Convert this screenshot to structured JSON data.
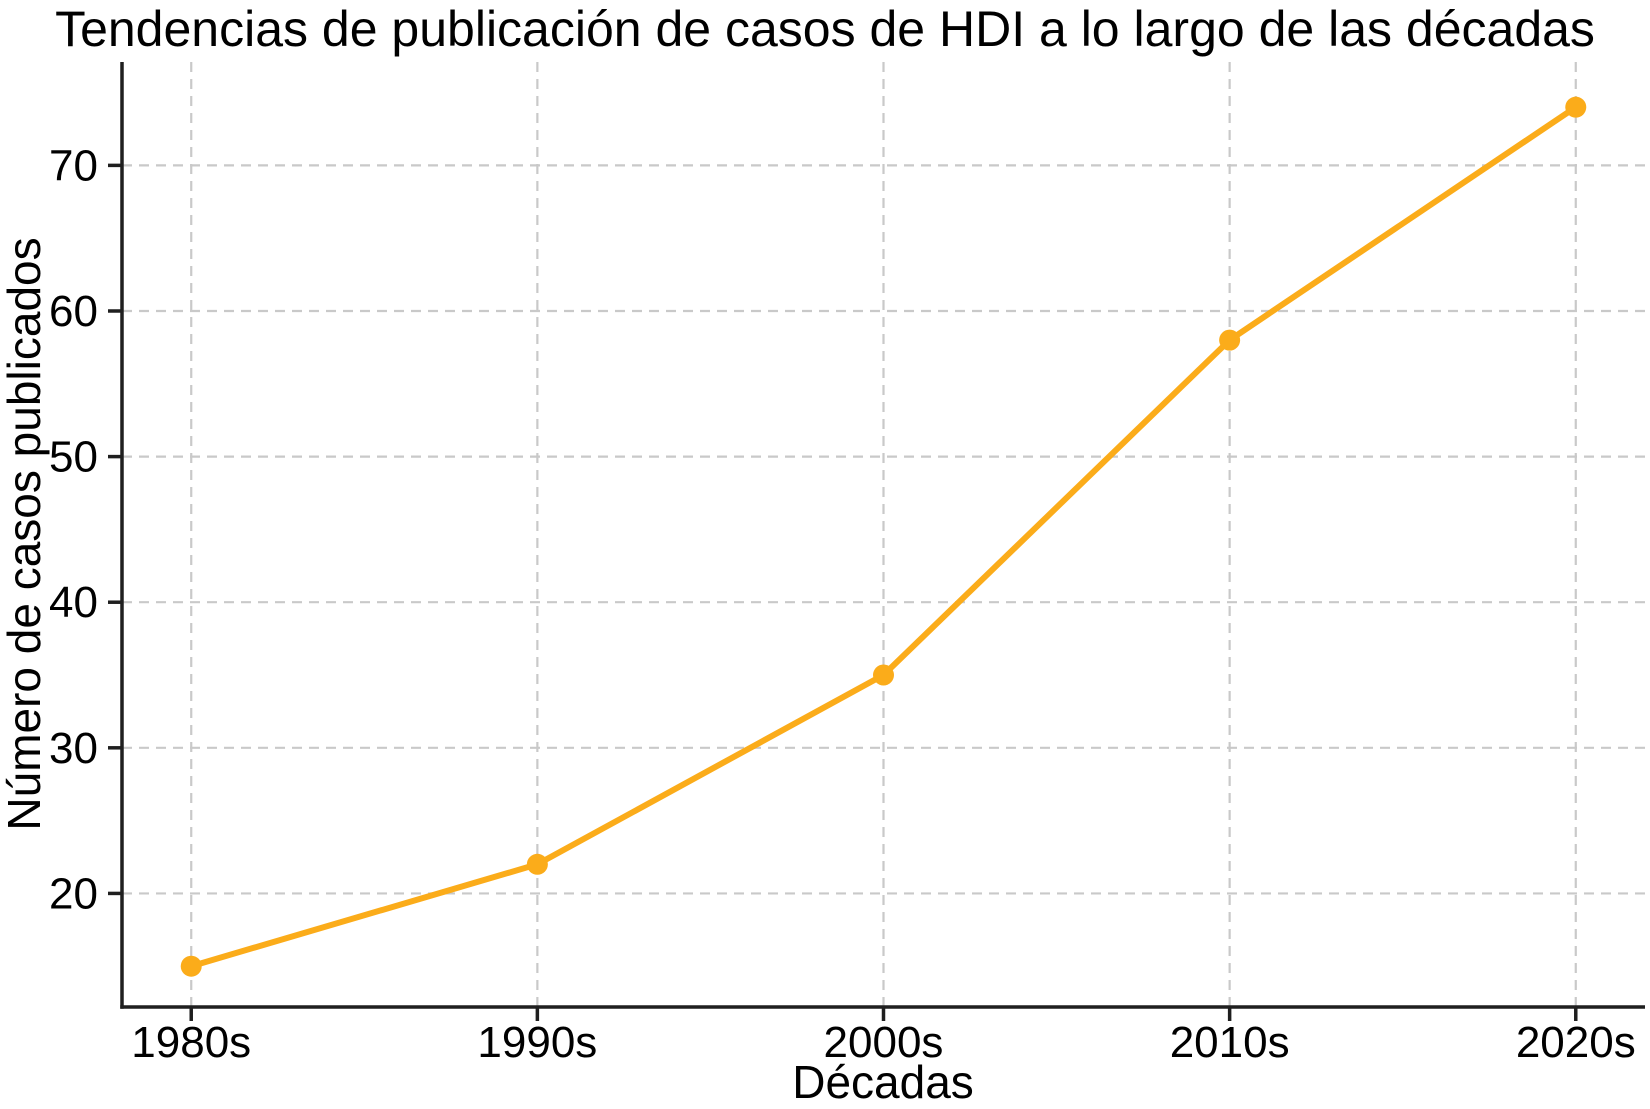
{
  "chart_data": {
    "type": "line",
    "title": "Tendencias de publicación de casos de HDI a lo largo de las décadas",
    "xlabel": "Décadas",
    "ylabel": "Número de casos publicados",
    "categories": [
      "1980s",
      "1990s",
      "2000s",
      "2010s",
      "2020s"
    ],
    "values": [
      15,
      22,
      35,
      58,
      74
    ],
    "yticks": [
      20,
      30,
      40,
      50,
      60,
      70
    ],
    "ylim": [
      12.2,
      77.1
    ],
    "xlim": [
      -0.2,
      4.2
    ],
    "grid": true,
    "grid_style": "dashed",
    "legend_position": "none",
    "marker": "circle",
    "colors": {
      "line": "#FBAC1A",
      "marker": "#FBAC1A",
      "grid": "#C9C9C9",
      "axis": "#1F1F1F",
      "text": "#000000",
      "background": "#FFFFFF"
    }
  }
}
